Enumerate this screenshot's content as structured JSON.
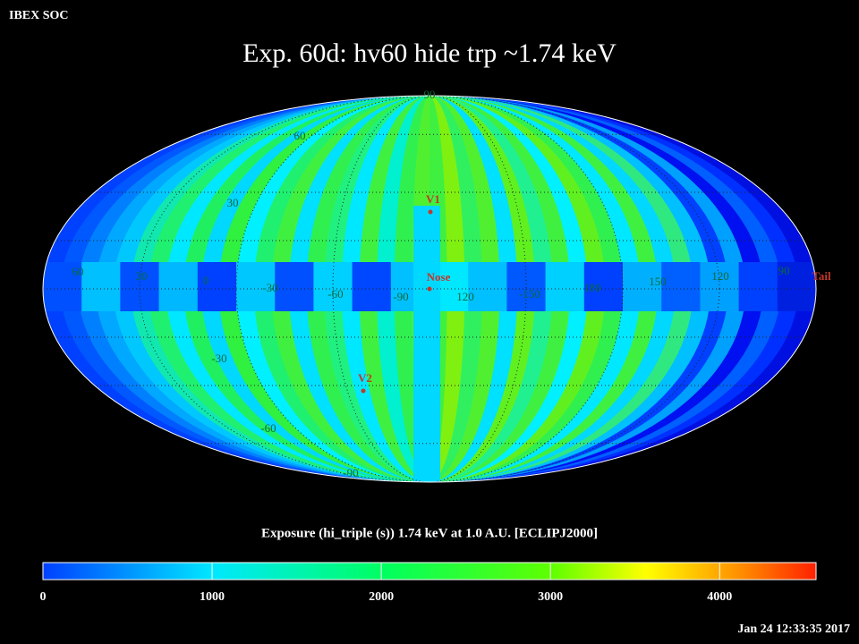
{
  "header": {
    "label": "IBEX SOC",
    "title": "Exp.   60d: hv60 hide trp ~1.74 keV",
    "timestamp": "Jan 24 12:33:35 2017"
  },
  "map": {
    "longitude_labels": [
      "60",
      "30",
      "0",
      "-30",
      "-60",
      "-90",
      "120",
      "-150",
      "180",
      "150",
      "120",
      "90"
    ],
    "latitude_labels": [
      "90",
      "60",
      "30",
      "-30",
      "-60",
      "-90"
    ],
    "markers": [
      "V1",
      "Nose",
      "V2",
      "Tail"
    ]
  },
  "colorbar": {
    "label": "Exposure (hi_triple (s))  1.74 keV at 1.0 A.U. [ECLIPJ2000]",
    "range": [
      0,
      4570
    ],
    "ticks": [
      0,
      1000,
      2000,
      3000,
      4000
    ]
  }
}
